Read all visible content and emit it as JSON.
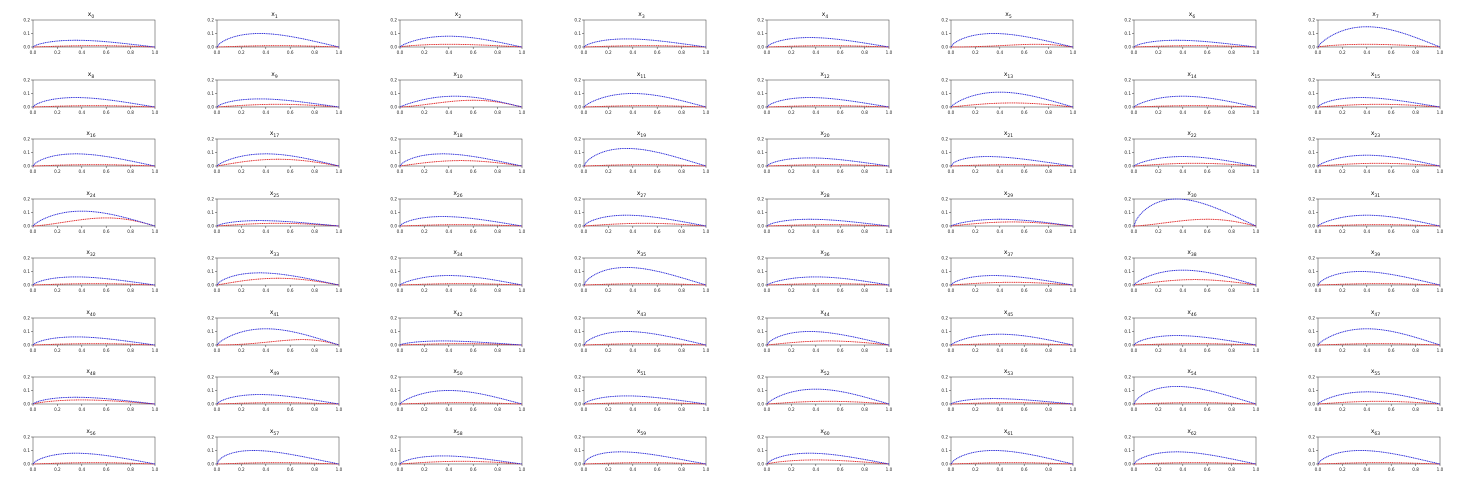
{
  "figure": {
    "title_prefix": "x",
    "x_tick_labels": [
      "0.0",
      "0.2",
      "0.4",
      "0.6",
      "0.8",
      "1.0"
    ],
    "y_tick_labels": [
      "0.0",
      "0.1",
      "0.2"
    ]
  },
  "colors": {
    "upper": "#1f1fd6",
    "lower": "#e01f1f",
    "frame": "#333333"
  },
  "chart_data": {
    "type": "line",
    "layout": "8x8 grid of small multiples",
    "xlim": [
      0,
      1
    ],
    "ylim": [
      0,
      0.2
    ],
    "series_style": [
      {
        "role": "upper surface",
        "color": "#1f1fd6",
        "style": "dashed"
      },
      {
        "role": "lower/camber line",
        "color": "#e01f1f",
        "style": "dashed"
      }
    ],
    "x": [
      0,
      0.02,
      0.05,
      0.1,
      0.2,
      0.3,
      0.4,
      0.5,
      0.6,
      0.7,
      0.8,
      0.9,
      1.0
    ],
    "panels": [
      {
        "subscript": "0",
        "peak": 0.05,
        "peak_x": 0.35,
        "camber": 0.01,
        "camber_x": 0.5
      },
      {
        "subscript": "1",
        "peak": 0.1,
        "peak_x": 0.35,
        "camber": 0.01,
        "camber_x": 0.5
      },
      {
        "subscript": "2",
        "peak": 0.08,
        "peak_x": 0.4,
        "camber": 0.02,
        "camber_x": 0.4
      },
      {
        "subscript": "3",
        "peak": 0.06,
        "peak_x": 0.35,
        "camber": 0.01,
        "camber_x": 0.5
      },
      {
        "subscript": "4",
        "peak": 0.07,
        "peak_x": 0.35,
        "camber": 0.01,
        "camber_x": 0.5
      },
      {
        "subscript": "5",
        "peak": 0.1,
        "peak_x": 0.35,
        "camber": 0.02,
        "camber_x": 0.7
      },
      {
        "subscript": "6",
        "peak": 0.05,
        "peak_x": 0.35,
        "camber": 0.01,
        "camber_x": 0.5
      },
      {
        "subscript": "7",
        "peak": 0.15,
        "peak_x": 0.4,
        "camber": 0.02,
        "camber_x": 0.4
      },
      {
        "subscript": "8",
        "peak": 0.07,
        "peak_x": 0.35,
        "camber": 0.01,
        "camber_x": 0.5
      },
      {
        "subscript": "9",
        "peak": 0.06,
        "peak_x": 0.35,
        "camber": 0.02,
        "camber_x": 0.5
      },
      {
        "subscript": "10",
        "peak": 0.08,
        "peak_x": 0.45,
        "camber": 0.05,
        "camber_x": 0.6
      },
      {
        "subscript": "11",
        "peak": 0.1,
        "peak_x": 0.4,
        "camber": 0.01,
        "camber_x": 0.5
      },
      {
        "subscript": "12",
        "peak": 0.07,
        "peak_x": 0.35,
        "camber": 0.01,
        "camber_x": 0.5
      },
      {
        "subscript": "13",
        "peak": 0.11,
        "peak_x": 0.4,
        "camber": 0.03,
        "camber_x": 0.5
      },
      {
        "subscript": "14",
        "peak": 0.08,
        "peak_x": 0.4,
        "camber": 0.01,
        "camber_x": 0.5
      },
      {
        "subscript": "15",
        "peak": 0.07,
        "peak_x": 0.35,
        "camber": 0.02,
        "camber_x": 0.5
      },
      {
        "subscript": "16",
        "peak": 0.09,
        "peak_x": 0.35,
        "camber": 0.01,
        "camber_x": 0.5
      },
      {
        "subscript": "17",
        "peak": 0.09,
        "peak_x": 0.4,
        "camber": 0.05,
        "camber_x": 0.5
      },
      {
        "subscript": "18",
        "peak": 0.09,
        "peak_x": 0.35,
        "camber": 0.04,
        "camber_x": 0.5
      },
      {
        "subscript": "19",
        "peak": 0.13,
        "peak_x": 0.35,
        "camber": 0.01,
        "camber_x": 0.5
      },
      {
        "subscript": "20",
        "peak": 0.06,
        "peak_x": 0.35,
        "camber": 0.01,
        "camber_x": 0.5
      },
      {
        "subscript": "21",
        "peak": 0.07,
        "peak_x": 0.3,
        "camber": 0.01,
        "camber_x": 0.5
      },
      {
        "subscript": "22",
        "peak": 0.07,
        "peak_x": 0.4,
        "camber": 0.02,
        "camber_x": 0.5
      },
      {
        "subscript": "23",
        "peak": 0.08,
        "peak_x": 0.4,
        "camber": 0.02,
        "camber_x": 0.5
      },
      {
        "subscript": "24",
        "peak": 0.11,
        "peak_x": 0.4,
        "camber": 0.06,
        "camber_x": 0.6
      },
      {
        "subscript": "25",
        "peak": 0.04,
        "peak_x": 0.35,
        "camber": 0.02,
        "camber_x": 0.5
      },
      {
        "subscript": "26",
        "peak": 0.07,
        "peak_x": 0.35,
        "camber": 0.01,
        "camber_x": 0.5
      },
      {
        "subscript": "27",
        "peak": 0.08,
        "peak_x": 0.35,
        "camber": 0.02,
        "camber_x": 0.5
      },
      {
        "subscript": "28",
        "peak": 0.05,
        "peak_x": 0.35,
        "camber": 0.01,
        "camber_x": 0.5
      },
      {
        "subscript": "29",
        "peak": 0.05,
        "peak_x": 0.4,
        "camber": 0.03,
        "camber_x": 0.5
      },
      {
        "subscript": "30",
        "peak": 0.2,
        "peak_x": 0.35,
        "camber": 0.05,
        "camber_x": 0.6
      },
      {
        "subscript": "31",
        "peak": 0.08,
        "peak_x": 0.4,
        "camber": 0.01,
        "camber_x": 0.5
      },
      {
        "subscript": "32",
        "peak": 0.06,
        "peak_x": 0.35,
        "camber": 0.01,
        "camber_x": 0.5
      },
      {
        "subscript": "33",
        "peak": 0.09,
        "peak_x": 0.35,
        "camber": 0.05,
        "camber_x": 0.5
      },
      {
        "subscript": "34",
        "peak": 0.07,
        "peak_x": 0.4,
        "camber": 0.01,
        "camber_x": 0.5
      },
      {
        "subscript": "35",
        "peak": 0.13,
        "peak_x": 0.35,
        "camber": 0.01,
        "camber_x": 0.5
      },
      {
        "subscript": "36",
        "peak": 0.06,
        "peak_x": 0.4,
        "camber": 0.01,
        "camber_x": 0.5
      },
      {
        "subscript": "37",
        "peak": 0.07,
        "peak_x": 0.35,
        "camber": 0.02,
        "camber_x": 0.5
      },
      {
        "subscript": "38",
        "peak": 0.11,
        "peak_x": 0.4,
        "camber": 0.04,
        "camber_x": 0.5
      },
      {
        "subscript": "39",
        "peak": 0.1,
        "peak_x": 0.35,
        "camber": 0.01,
        "camber_x": 0.5
      },
      {
        "subscript": "40",
        "peak": 0.06,
        "peak_x": 0.35,
        "camber": 0.01,
        "camber_x": 0.5
      },
      {
        "subscript": "41",
        "peak": 0.12,
        "peak_x": 0.4,
        "camber": 0.04,
        "camber_x": 0.7
      },
      {
        "subscript": "42",
        "peak": 0.03,
        "peak_x": 0.35,
        "camber": 0.01,
        "camber_x": 0.5
      },
      {
        "subscript": "43",
        "peak": 0.1,
        "peak_x": 0.35,
        "camber": 0.01,
        "camber_x": 0.5
      },
      {
        "subscript": "44",
        "peak": 0.1,
        "peak_x": 0.35,
        "camber": 0.03,
        "camber_x": 0.5
      },
      {
        "subscript": "45",
        "peak": 0.08,
        "peak_x": 0.4,
        "camber": 0.01,
        "camber_x": 0.5
      },
      {
        "subscript": "46",
        "peak": 0.07,
        "peak_x": 0.35,
        "camber": 0.01,
        "camber_x": 0.5
      },
      {
        "subscript": "47",
        "peak": 0.12,
        "peak_x": 0.4,
        "camber": 0.01,
        "camber_x": 0.5
      },
      {
        "subscript": "48",
        "peak": 0.05,
        "peak_x": 0.35,
        "camber": 0.03,
        "camber_x": 0.4
      },
      {
        "subscript": "49",
        "peak": 0.07,
        "peak_x": 0.35,
        "camber": 0.01,
        "camber_x": 0.5
      },
      {
        "subscript": "50",
        "peak": 0.1,
        "peak_x": 0.4,
        "camber": 0.01,
        "camber_x": 0.5
      },
      {
        "subscript": "51",
        "peak": 0.06,
        "peak_x": 0.35,
        "camber": 0.01,
        "camber_x": 0.5
      },
      {
        "subscript": "52",
        "peak": 0.11,
        "peak_x": 0.4,
        "camber": 0.02,
        "camber_x": 0.5
      },
      {
        "subscript": "53",
        "peak": 0.04,
        "peak_x": 0.35,
        "camber": 0.01,
        "camber_x": 0.5
      },
      {
        "subscript": "54",
        "peak": 0.13,
        "peak_x": 0.35,
        "camber": 0.01,
        "camber_x": 0.5
      },
      {
        "subscript": "55",
        "peak": 0.09,
        "peak_x": 0.4,
        "camber": 0.02,
        "camber_x": 0.5
      },
      {
        "subscript": "56",
        "peak": 0.08,
        "peak_x": 0.35,
        "camber": 0.01,
        "camber_x": 0.5
      },
      {
        "subscript": "57",
        "peak": 0.1,
        "peak_x": 0.3,
        "camber": 0.01,
        "camber_x": 0.5
      },
      {
        "subscript": "58",
        "peak": 0.06,
        "peak_x": 0.35,
        "camber": 0.02,
        "camber_x": 0.5
      },
      {
        "subscript": "59",
        "peak": 0.09,
        "peak_x": 0.3,
        "camber": 0.01,
        "camber_x": 0.5
      },
      {
        "subscript": "60",
        "peak": 0.08,
        "peak_x": 0.35,
        "camber": 0.03,
        "camber_x": 0.4
      },
      {
        "subscript": "61",
        "peak": 0.1,
        "peak_x": 0.35,
        "camber": 0.01,
        "camber_x": 0.5
      },
      {
        "subscript": "62",
        "peak": 0.09,
        "peak_x": 0.35,
        "camber": 0.01,
        "camber_x": 0.5
      },
      {
        "subscript": "63",
        "peak": 0.1,
        "peak_x": 0.35,
        "camber": 0.01,
        "camber_x": 0.5
      }
    ]
  }
}
